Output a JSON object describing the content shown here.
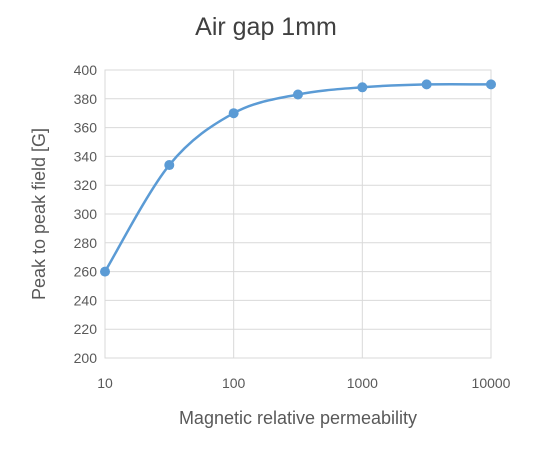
{
  "chart_data": {
    "type": "line",
    "title": "Air gap 1mm",
    "xlabel": "Magnetic relative permeability",
    "ylabel": "Peak to peak field [G]",
    "x_scale": "log",
    "xlim": [
      10,
      10000
    ],
    "ylim": [
      200,
      400
    ],
    "x_ticks": [
      10,
      100,
      1000,
      10000
    ],
    "y_ticks": [
      200,
      220,
      240,
      260,
      280,
      300,
      320,
      340,
      360,
      380,
      400
    ],
    "grid": true,
    "legend": "none",
    "series": [
      {
        "x": [
          10,
          31.6,
          100,
          316,
          1000,
          3160,
          10000
        ],
        "y": [
          260,
          334,
          370,
          383,
          388,
          390,
          390
        ],
        "color": "#5b9bd5",
        "smooth": true,
        "markers": true
      }
    ]
  }
}
